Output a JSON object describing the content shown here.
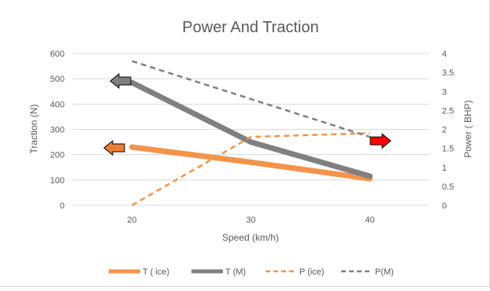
{
  "chart_data": {
    "type": "line",
    "title": "Power And Traction",
    "xlabel": "Speed (km/h)",
    "ylabel": "Traction (N)",
    "y2label": "Power ( BHP)",
    "categories": [
      "20",
      "30",
      "40"
    ],
    "x": [
      20,
      30,
      40
    ],
    "ylim": [
      0,
      600
    ],
    "y2lim": [
      0,
      4
    ],
    "y_ticks": [
      "0",
      "100",
      "200",
      "300",
      "400",
      "500",
      "600"
    ],
    "y2_ticks": [
      "0",
      "0.5",
      "1",
      "1.5",
      "2",
      "2.5",
      "3",
      "3.5",
      "4"
    ],
    "grid": true,
    "legend_position": "bottom",
    "series": [
      {
        "name": "T ( ice)",
        "axis": "left",
        "values": [
          230,
          170,
          105
        ],
        "color": "#f4934a",
        "style": "solid"
      },
      {
        "name": "T (M)",
        "axis": "left",
        "values": [
          485,
          250,
          115
        ],
        "color": "#808080",
        "style": "solid"
      },
      {
        "name": "P (ice)",
        "axis": "right",
        "values": [
          0,
          1.8,
          1.9
        ],
        "color": "#f4934a",
        "style": "dashed"
      },
      {
        "name": "P(M)",
        "axis": "right",
        "values": [
          3.8,
          2.8,
          1.8
        ],
        "color": "#808080",
        "style": "dashed"
      }
    ],
    "annotations": [
      {
        "kind": "arrow-left",
        "color": "#ed7d31",
        "points_to": "left axis",
        "series": "T ( ice)"
      },
      {
        "kind": "arrow-left",
        "color": "#7f7f7f",
        "points_to": "left axis",
        "series": "T (M)"
      },
      {
        "kind": "arrow-right",
        "color": "#ff0000",
        "points_to": "right axis",
        "series": "P"
      }
    ]
  }
}
